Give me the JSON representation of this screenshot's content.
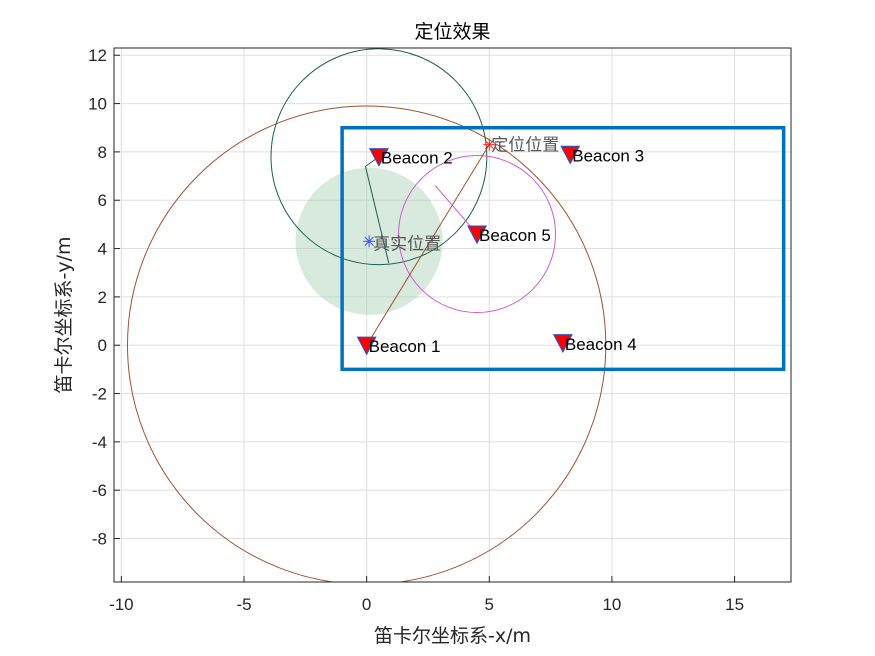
{
  "chart_data": {
    "type": "scatter",
    "title": "定位效果",
    "xlabel": "笛卡尔坐标系-x/m",
    "ylabel": "笛卡尔坐标系-y/m",
    "xlim": [
      -10.3,
      17.3
    ],
    "ylim": [
      -9.8,
      12.3
    ],
    "xticks": [
      -10,
      -5,
      0,
      5,
      10,
      15
    ],
    "yticks": [
      -8,
      -6,
      -4,
      -2,
      0,
      2,
      4,
      6,
      8,
      10,
      12
    ],
    "xtick_labels": [
      "-10",
      "-5",
      "0",
      "5",
      "10",
      "15"
    ],
    "ytick_labels": [
      "-8",
      "-6",
      "-4",
      "-2",
      "0",
      "2",
      "4",
      "6",
      "8",
      "10",
      "12"
    ],
    "grid": true,
    "beacons": [
      {
        "label": "Beacon 1",
        "x": 0,
        "y": 0
      },
      {
        "label": "Beacon 2",
        "x": 0.5,
        "y": 7.8
      },
      {
        "label": "Beacon 3",
        "x": 8.3,
        "y": 7.9
      },
      {
        "label": "Beacon 4",
        "x": 8,
        "y": 0.1
      },
      {
        "label": "Beacon 5",
        "x": 4.5,
        "y": 4.6
      }
    ],
    "true_position": {
      "label": "真实位置",
      "x": 0.1,
      "y": 4.3,
      "color": "#3b55ff"
    },
    "estimated_position": {
      "label": "定位位置",
      "x": 5,
      "y": 8.3,
      "color": "#ff2020"
    },
    "boundary": {
      "x": [
        -1,
        17
      ],
      "y": [
        -1,
        9
      ],
      "color": "#0072bd"
    },
    "range_circles": [
      {
        "center_x": 0,
        "center_y": 0,
        "radius": 9.75,
        "color": "#a0522d"
      },
      {
        "center_x": 0.5,
        "center_y": 7.8,
        "radius": 4.4,
        "color": "#1b5e4a"
      },
      {
        "center_x": 4.5,
        "center_y": 4.6,
        "radius": 3.2,
        "color": "#d05ad0"
      }
    ],
    "uncertainty_region": {
      "center_x": 0.1,
      "center_y": 4.3,
      "radius": 3.0,
      "color": "#a8d0b4"
    },
    "marker_color": "#ff0000",
    "marker_edge": "#3050c0"
  }
}
